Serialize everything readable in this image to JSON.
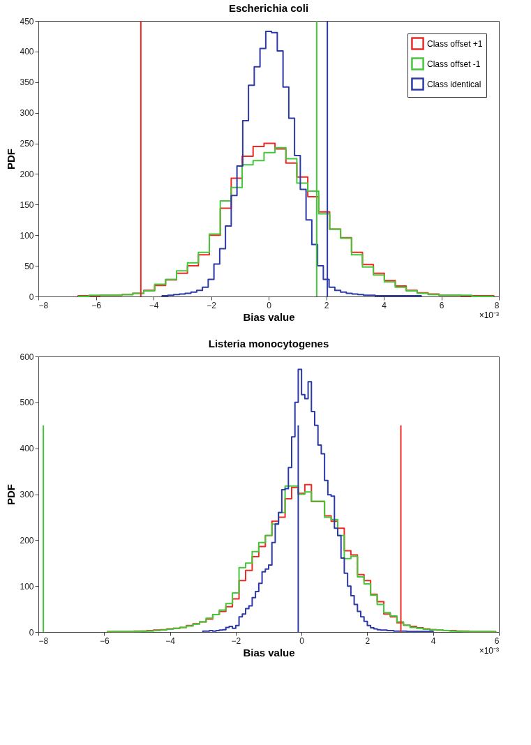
{
  "chart_data": [
    {
      "type": "histogram",
      "title": "Escherichia coli",
      "xlabel": "Bias value",
      "ylabel": "PDF",
      "xlim": [
        -8,
        8
      ],
      "ylim": [
        0,
        450
      ],
      "xticks": [
        -8,
        -6,
        -4,
        -2,
        0,
        2,
        4,
        6,
        8
      ],
      "yticks": [
        0,
        50,
        100,
        150,
        200,
        250,
        300,
        350,
        400,
        450
      ],
      "grid": false,
      "legend": "top right",
      "annotations": [
        "×10⁻³"
      ],
      "bins": [
        -6.62,
        -6.24,
        -5.86,
        -5.48,
        -5.1,
        -4.72,
        -4.34,
        -3.96,
        -3.58,
        -3.2,
        -2.82,
        -2.44,
        -2.06,
        -1.68,
        -1.3,
        -0.92,
        -0.54,
        -0.16,
        0.22,
        0.6,
        0.98,
        1.36,
        1.74,
        2.12,
        2.5,
        2.88,
        3.26,
        3.64,
        4.02,
        4.4,
        4.78,
        5.16,
        5.54,
        5.92,
        6.3,
        6.68,
        7.06,
        7.44,
        7.82
      ],
      "series": [
        {
          "name": "Class offset +1",
          "color": "#ee2a24",
          "values": [
            1,
            1,
            2,
            2,
            3,
            5,
            10,
            18,
            27,
            38,
            50,
            68,
            100,
            144,
            193,
            229,
            245,
            250,
            241,
            218,
            195,
            163,
            138,
            110,
            96,
            72,
            52,
            38,
            26,
            17,
            10,
            6,
            4,
            2,
            2,
            1,
            1,
            1
          ]
        },
        {
          "name": "Class offset -1",
          "color": "#44c83a",
          "values": [
            0,
            2,
            2,
            2,
            3,
            5,
            9,
            20,
            28,
            42,
            55,
            72,
            102,
            156,
            178,
            215,
            222,
            235,
            243,
            225,
            185,
            172,
            135,
            110,
            95,
            68,
            48,
            35,
            24,
            15,
            9,
            5,
            3,
            2,
            2,
            2,
            0,
            0
          ]
        },
        {
          "name": "Class identical",
          "color": "#2b3aa8",
          "bins": [
            -3.7,
            -3.5,
            -3.3,
            -3.1,
            -2.9,
            -2.7,
            -2.5,
            -2.3,
            -2.1,
            -1.9,
            -1.7,
            -1.5,
            -1.3,
            -1.1,
            -0.9,
            -0.7,
            -0.5,
            -0.3,
            -0.1,
            0.1,
            0.3,
            0.5,
            0.7,
            0.9,
            1.1,
            1.3,
            1.5,
            1.7,
            1.9,
            2.1,
            2.3,
            2.5,
            2.7,
            2.9,
            3.1,
            3.3,
            3.5,
            3.7,
            3.9,
            4.1,
            4.3,
            4.5,
            4.7,
            4.9,
            5.1,
            5.3
          ],
          "values": [
            1,
            2,
            3,
            4,
            5,
            7,
            10,
            15,
            28,
            53,
            78,
            115,
            165,
            213,
            287,
            345,
            375,
            405,
            433,
            431,
            401,
            342,
            291,
            230,
            175,
            125,
            85,
            50,
            28,
            15,
            10,
            7,
            5,
            4,
            3,
            2,
            2,
            1,
            1,
            1,
            1,
            1,
            1,
            1,
            1
          ]
        },
        {
          "type": "line",
          "color": "#ee2a24",
          "x": [
            -4.44,
            -4.44
          ],
          "values": [
            0,
            450
          ]
        },
        {
          "type": "line",
          "color": "#44c83a",
          "x": [
            1.67,
            1.67
          ],
          "values": [
            0,
            450
          ]
        },
        {
          "type": "line",
          "color": "#2b3aa8",
          "x": [
            2.04,
            2.04
          ],
          "values": [
            0,
            450
          ]
        }
      ]
    },
    {
      "type": "histogram",
      "title": "Listeria monocytogenes",
      "xlabel": "Bias value",
      "ylabel": "PDF",
      "xlim": [
        -8,
        6
      ],
      "ylim": [
        0,
        600
      ],
      "xticks": [
        -8,
        -6,
        -4,
        -2,
        0,
        2,
        4,
        6
      ],
      "yticks": [
        0,
        100,
        200,
        300,
        400,
        500,
        600
      ],
      "grid": false,
      "legend": "top right",
      "annotations": [
        "×10⁻³"
      ],
      "bins": [
        -5.9,
        -5.7,
        -5.5,
        -5.3,
        -5.1,
        -4.9,
        -4.7,
        -4.5,
        -4.3,
        -4.1,
        -3.9,
        -3.7,
        -3.5,
        -3.3,
        -3.1,
        -2.9,
        -2.7,
        -2.5,
        -2.3,
        -2.1,
        -1.9,
        -1.7,
        -1.5,
        -1.3,
        -1.1,
        -0.9,
        -0.7,
        -0.5,
        -0.3,
        -0.1,
        0.1,
        0.3,
        0.5,
        0.7,
        0.9,
        1.1,
        1.3,
        1.5,
        1.7,
        1.9,
        2.1,
        2.3,
        2.5,
        2.7,
        2.9,
        3.1,
        3.3,
        3.5,
        3.7,
        3.9,
        4.1,
        4.3,
        4.5,
        4.7,
        4.9,
        5.1,
        5.3,
        5.5,
        5.7,
        5.9
      ],
      "series": [
        {
          "name": "Class offset +1",
          "color": "#ee2a24",
          "values": [
            1,
            1,
            1,
            1,
            2,
            2,
            3,
            4,
            5,
            7,
            8,
            10,
            14,
            18,
            22,
            28,
            38,
            45,
            55,
            72,
            112,
            134,
            164,
            186,
            210,
            241,
            250,
            290,
            315,
            302,
            321,
            284,
            284,
            253,
            241,
            226,
            177,
            168,
            125,
            112,
            82,
            66,
            39,
            33,
            20,
            15,
            12,
            9,
            7,
            5,
            4,
            3,
            3,
            2,
            2,
            1,
            1,
            1,
            1
          ]
        },
        {
          "name": "Class offset -1",
          "color": "#44c83a",
          "values": [
            1,
            1,
            1,
            1,
            1,
            2,
            2,
            3,
            4,
            6,
            8,
            10,
            13,
            17,
            22,
            30,
            38,
            48,
            62,
            85,
            140,
            150,
            175,
            195,
            210,
            235,
            260,
            318,
            318,
            300,
            305,
            285,
            285,
            250,
            245,
            210,
            160,
            165,
            120,
            105,
            80,
            60,
            42,
            35,
            22,
            15,
            10,
            8,
            6,
            5,
            4,
            3,
            2,
            2,
            1,
            1,
            1,
            1,
            1
          ]
        },
        {
          "name": "Class identical",
          "color": "#2b3aa8",
          "bins": [
            -3.0,
            -2.9,
            -2.8,
            -2.7,
            -2.6,
            -2.5,
            -2.4,
            -2.3,
            -2.2,
            -2.1,
            -2.0,
            -1.9,
            -1.8,
            -1.7,
            -1.6,
            -1.5,
            -1.4,
            -1.3,
            -1.2,
            -1.1,
            -1.0,
            -0.9,
            -0.8,
            -0.7,
            -0.6,
            -0.5,
            -0.4,
            -0.3,
            -0.2,
            -0.1,
            0.0,
            0.1,
            0.2,
            0.3,
            0.4,
            0.5,
            0.6,
            0.7,
            0.8,
            0.9,
            1.0,
            1.1,
            1.2,
            1.3,
            1.4,
            1.5,
            1.6,
            1.7,
            1.8,
            1.9,
            2.0,
            2.1,
            2.2,
            2.3,
            2.4,
            2.5,
            2.6,
            2.7,
            2.8,
            2.9,
            3.0,
            3.1,
            3.2,
            3.3,
            3.4,
            3.5,
            3.6,
            3.7,
            3.8,
            3.9,
            4.0
          ],
          "values": [
            2,
            2,
            3,
            2,
            3,
            4,
            5,
            10,
            12,
            8,
            14,
            33,
            39,
            51,
            57,
            75,
            88,
            106,
            131,
            137,
            146,
            195,
            235,
            260,
            310,
            312,
            358,
            425,
            500,
            572,
            517,
            508,
            545,
            480,
            450,
            407,
            388,
            330,
            299,
            296,
            226,
            210,
            161,
            128,
            100,
            79,
            60,
            45,
            33,
            23,
            14,
            9,
            7,
            5,
            4,
            4,
            3,
            3,
            2,
            2,
            2,
            2,
            1,
            1,
            1,
            1,
            1,
            1,
            1,
            1
          ]
        },
        {
          "type": "line",
          "color": "#44c83a",
          "x": [
            -7.85,
            -7.85
          ],
          "values": [
            0,
            450
          ]
        },
        {
          "type": "line",
          "color": "#2b3aa8",
          "x": [
            -0.1,
            -0.1
          ],
          "values": [
            0,
            450
          ]
        },
        {
          "type": "line",
          "color": "#ee2a24",
          "x": [
            3.02,
            3.02
          ],
          "values": [
            0,
            450
          ]
        }
      ]
    }
  ]
}
